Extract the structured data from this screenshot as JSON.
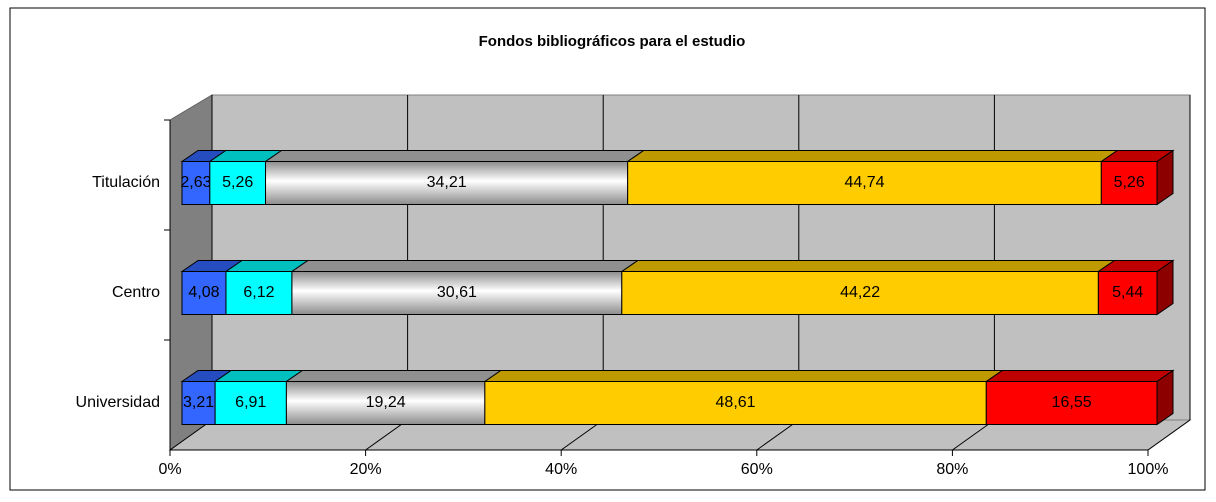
{
  "chart_data": {
    "type": "bar",
    "orientation": "horizontal",
    "stacking": "percent",
    "title": "Fondos bibliográficos para el estudio",
    "categories": [
      "Titulación",
      "Centro",
      "Universidad"
    ],
    "series": [
      {
        "color": "#3366ff",
        "values": [
          2.63,
          4.08,
          3.21
        ],
        "value_labels": [
          "2,63",
          "4,08",
          "3,21"
        ]
      },
      {
        "color": "#00ffff",
        "values": [
          5.26,
          6.12,
          6.91
        ],
        "value_labels": [
          "5,26",
          "6,12",
          "6,91"
        ]
      },
      {
        "color": "#c0c0c0",
        "values": [
          34.21,
          30.61,
          19.24
        ],
        "value_labels": [
          "34,21",
          "30,61",
          "19,24"
        ]
      },
      {
        "color": "#ffcc00",
        "values": [
          44.74,
          44.22,
          48.61
        ],
        "value_labels": [
          "44,74",
          "44,22",
          "48,61"
        ]
      },
      {
        "color": "#ff0000",
        "values": [
          5.26,
          5.44,
          16.55
        ],
        "value_labels": [
          "5,26",
          "5,44",
          "16,55"
        ]
      }
    ],
    "xlim": [
      0,
      100
    ],
    "xticks": [
      {
        "value": 0,
        "label": "0%"
      },
      {
        "value": 20,
        "label": "20%"
      },
      {
        "value": 40,
        "label": "40%"
      },
      {
        "value": 60,
        "label": "60%"
      },
      {
        "value": 80,
        "label": "80%"
      },
      {
        "value": 100,
        "label": "100%"
      }
    ],
    "grid": true
  }
}
